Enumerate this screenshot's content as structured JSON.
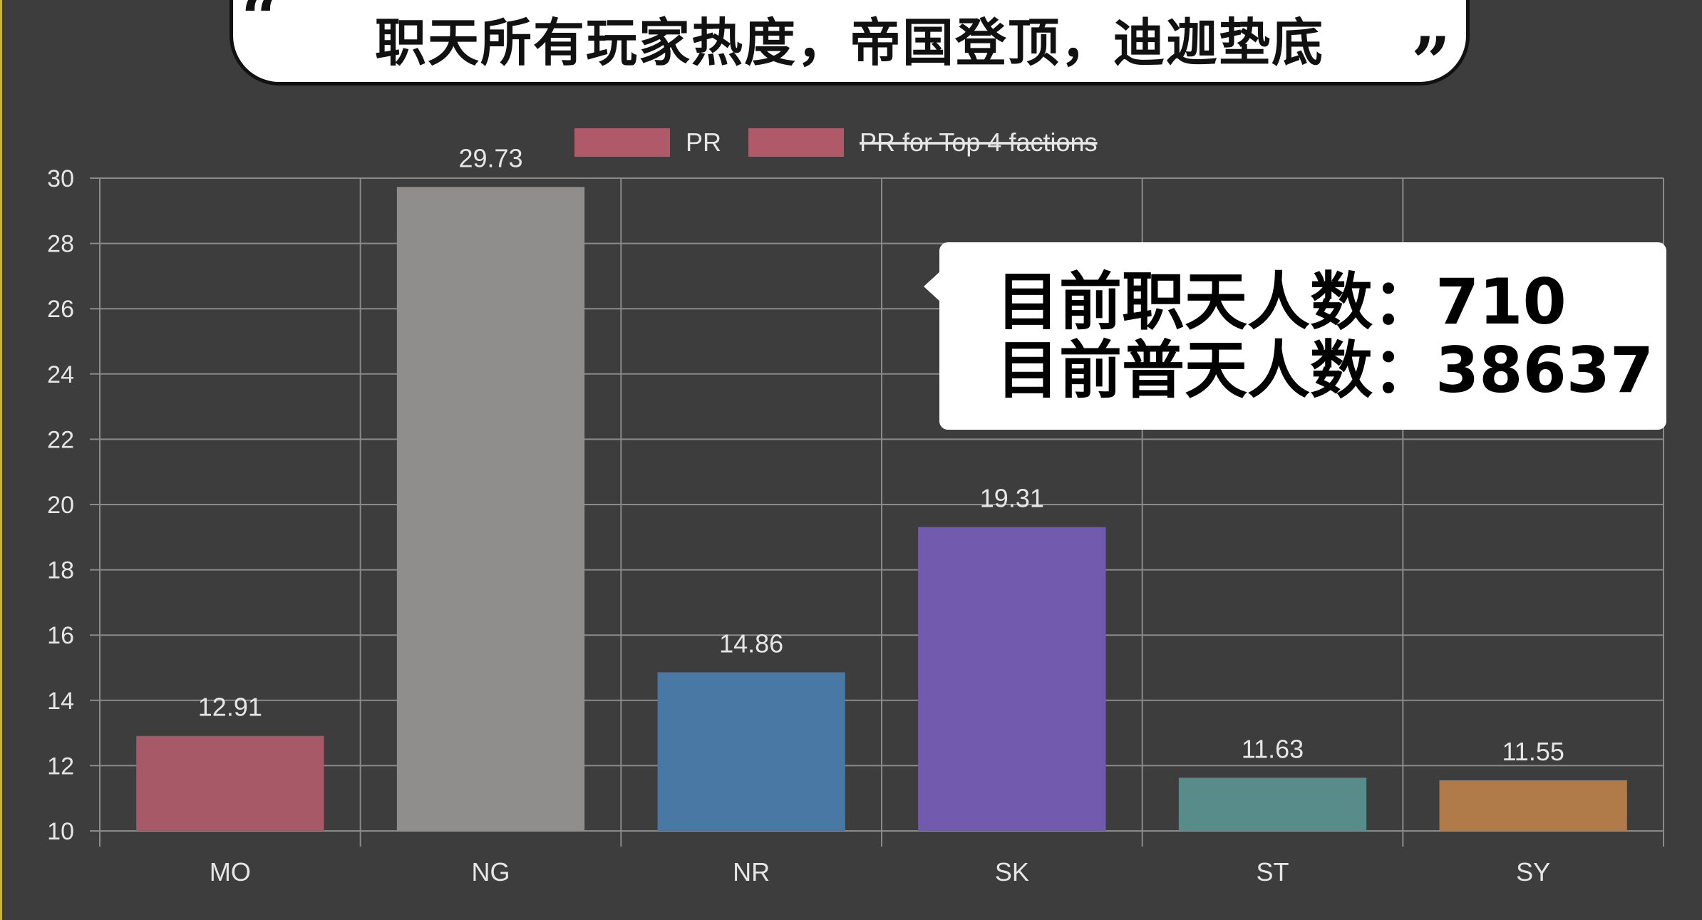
{
  "title": "职天所有玩家热度，帝国登顶，迪迦垫底",
  "quote_open": "“",
  "quote_close": "”",
  "info": {
    "line1": "目前职天人数：710",
    "line2": "目前普天人数：38637"
  },
  "chart_data": {
    "type": "bar",
    "categories": [
      "MO",
      "NG",
      "NR",
      "SK",
      "ST",
      "SY"
    ],
    "values": [
      12.91,
      29.73,
      14.86,
      19.31,
      11.63,
      11.55
    ],
    "value_labels": [
      "12.91",
      "29.73",
      "14.86",
      "19.31",
      "11.63",
      "11.55"
    ],
    "colors": [
      "#a85967",
      "#8f8e8c",
      "#4a78a4",
      "#725aae",
      "#588c8a",
      "#b07b48"
    ],
    "legend": [
      {
        "label": "PR",
        "color": "#b05a69",
        "strikethrough": false
      },
      {
        "label": "PR for Top 4 factions",
        "color": "#b05a69",
        "strikethrough": true
      }
    ],
    "legend_position": "top",
    "yticks": [
      "10",
      "12",
      "14",
      "16",
      "18",
      "20",
      "22",
      "24",
      "26",
      "28",
      "30"
    ],
    "ylim": [
      10,
      30
    ],
    "grid": true,
    "title": "",
    "xlabel": "",
    "ylabel": ""
  },
  "colors": {
    "background": "#3d3d3d",
    "grid": "#8a8a8a",
    "axis_text": "#e6e6e6"
  }
}
